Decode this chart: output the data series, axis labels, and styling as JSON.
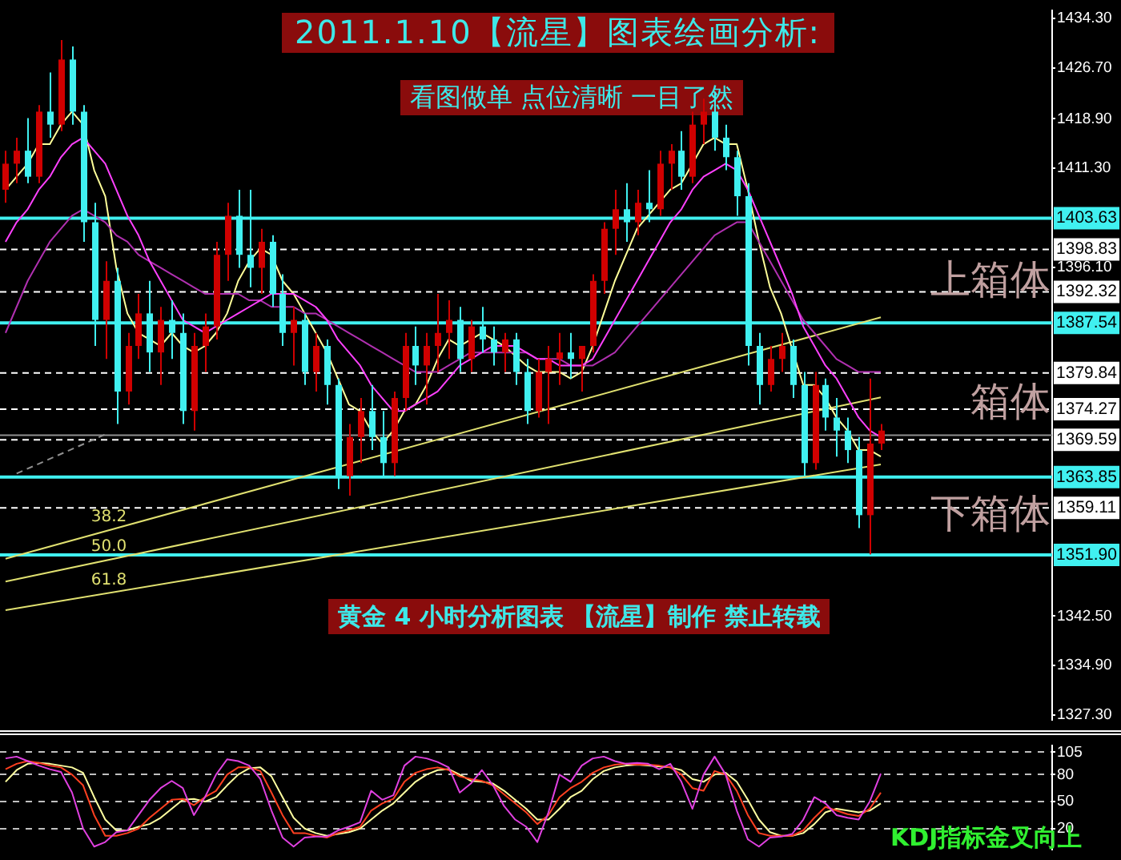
{
  "chart_data": [
    {
      "type": "candlestick",
      "title": "2011.1.10【流星】图表绘画分析:",
      "subtitle": "看图做单 点位清晰 一目了然",
      "categories": [
        null,
        null,
        null,
        null,
        null,
        null,
        null,
        null,
        null,
        null,
        null,
        null,
        null,
        null,
        null,
        null,
        null,
        null,
        null,
        null,
        null,
        null,
        null,
        null,
        null,
        null,
        null,
        null,
        null,
        null,
        null,
        null,
        null,
        null,
        null,
        null,
        null,
        null,
        null,
        null,
        null,
        null,
        null,
        null,
        null,
        null,
        null,
        null,
        null,
        null,
        null,
        null,
        null,
        null,
        null,
        null,
        null,
        null,
        null,
        null,
        null,
        null,
        null,
        null,
        null,
        null,
        null,
        null,
        null,
        null,
        null,
        null,
        null,
        null,
        null,
        null,
        null,
        null,
        null,
        null
      ],
      "ylim": [
        1326.6,
        1435.5
      ],
      "yticks": [
        {
          "value": 1327.3,
          "label": "1327.30"
        },
        {
          "value": 1334.9,
          "label": "1334.90"
        },
        {
          "value": 1342.5,
          "label": "1342.50"
        },
        {
          "value": 1396.1,
          "label": "1396.10"
        },
        {
          "value": 1411.3,
          "label": "1411.30"
        },
        {
          "value": 1418.9,
          "label": "1418.90"
        },
        {
          "value": 1426.7,
          "label": "1426.70"
        },
        {
          "value": 1434.3,
          "label": "1434.30"
        }
      ],
      "tick_labels": "y",
      "legend": false,
      "series": [
        {
          "type": "line",
          "color": "#ff40ff",
          "values": [
            1400,
            1403,
            1405,
            1408,
            1410,
            1413,
            1415,
            1416,
            1414,
            1412,
            1408,
            1404,
            1401,
            1397,
            1394,
            1391,
            1388,
            1387,
            1386,
            1387,
            1388,
            1389,
            1390,
            1391,
            1392,
            1392,
            1392,
            1391,
            1390,
            1388,
            1385,
            1383,
            1381,
            1378,
            1376,
            1374,
            1374,
            1375,
            1376,
            1377,
            1379,
            1381,
            1382,
            1383,
            1384,
            1384,
            1384,
            1383,
            1382,
            1382,
            1381,
            1381,
            1381,
            1382,
            1385,
            1388,
            1391,
            1394,
            1397,
            1400,
            1403,
            1405,
            1408,
            1410,
            1411,
            1412,
            1411,
            1408,
            1404,
            1400,
            1396,
            1392,
            1387,
            1384,
            1381,
            1379,
            1376,
            1373,
            1371,
            1370
          ]
        },
        {
          "type": "line",
          "color": "#b030b0",
          "values": [
            1386,
            1390,
            1394,
            1397,
            1400,
            1402,
            1404,
            1405,
            1404,
            1403,
            1401,
            1400,
            1398,
            1397,
            1396,
            1395,
            1394,
            1393,
            1392,
            1392,
            1392,
            1392,
            1391,
            1391,
            1390,
            1390,
            1390,
            1389,
            1389,
            1388,
            1387,
            1386,
            1385,
            1384,
            1383,
            1382,
            1381,
            1380,
            1380,
            1380,
            1381,
            1382,
            1383,
            1383,
            1383,
            1383,
            1383,
            1383,
            1382,
            1382,
            1382,
            1381,
            1381,
            1381,
            1382,
            1383,
            1385,
            1387,
            1389,
            1391,
            1393,
            1395,
            1397,
            1399,
            1401,
            1402,
            1403,
            1403,
            1400,
            1397,
            1394,
            1391,
            1388,
            1386,
            1384,
            1382,
            1381,
            1380,
            1380,
            1380
          ]
        },
        {
          "type": "line",
          "color": "#ffff99",
          "values": [
            1408,
            1410,
            1412,
            1415,
            1415,
            1418,
            1420,
            1418,
            1411,
            1407,
            1396,
            1389,
            1386,
            1385,
            1384,
            1386,
            1384,
            1383,
            1384,
            1386,
            1389,
            1394,
            1397,
            1399,
            1398,
            1394,
            1392,
            1389,
            1386,
            1383,
            1379,
            1375,
            1374,
            1371,
            1369,
            1371,
            1374,
            1375,
            1378,
            1382,
            1385,
            1384,
            1385,
            1386,
            1385,
            1384,
            null,
            1381,
            1380,
            1380,
            1380,
            1379,
            1380,
            1384,
            1389,
            1394,
            1398,
            1402,
            1404,
            1406,
            1408,
            1409,
            1412,
            1415,
            1416,
            1415,
            1415,
            1408,
            1400,
            1393,
            1389,
            null,
            1378,
            1378,
            1376,
            1373,
            1371,
            1368,
            1368,
            1367
          ]
        },
        {
          "type": "line",
          "name": "38.2",
          "color": "#e0e070",
          "values": [
            1351.3,
            null,
            null,
            null,
            null,
            null,
            null,
            null,
            null,
            null,
            null,
            null,
            null,
            null,
            null,
            null,
            null,
            null,
            null,
            null,
            null,
            null,
            null,
            null,
            null,
            null,
            null,
            null,
            null,
            null,
            null,
            null,
            null,
            null,
            null,
            null,
            null,
            null,
            null,
            null,
            null,
            null,
            null,
            null,
            null,
            null,
            null,
            null,
            null,
            null,
            null,
            null,
            null,
            null,
            null,
            null,
            null,
            null,
            null,
            null,
            null,
            null,
            null,
            null,
            null,
            null,
            null,
            null,
            null,
            null,
            null,
            null,
            null,
            null,
            null,
            null,
            null,
            null,
            null,
            1388.4
          ]
        },
        {
          "type": "line",
          "name": "50.0",
          "color": "#e0e070",
          "values": [
            1347.8,
            null,
            null,
            null,
            null,
            null,
            null,
            null,
            null,
            null,
            null,
            null,
            null,
            null,
            null,
            null,
            null,
            null,
            null,
            null,
            null,
            null,
            null,
            null,
            null,
            null,
            null,
            null,
            null,
            null,
            null,
            null,
            null,
            null,
            null,
            null,
            null,
            null,
            null,
            null,
            null,
            null,
            null,
            null,
            null,
            null,
            null,
            null,
            null,
            null,
            null,
            null,
            null,
            null,
            null,
            null,
            null,
            null,
            null,
            null,
            null,
            null,
            null,
            null,
            null,
            null,
            null,
            null,
            null,
            null,
            null,
            null,
            null,
            null,
            null,
            null,
            null,
            null,
            null,
            1376.1
          ]
        },
        {
          "type": "line",
          "name": "61.8",
          "color": "#e0e070",
          "values": [
            1343.4,
            null,
            null,
            null,
            null,
            null,
            null,
            null,
            null,
            null,
            null,
            null,
            null,
            null,
            null,
            null,
            null,
            null,
            null,
            null,
            null,
            null,
            null,
            null,
            null,
            null,
            null,
            null,
            null,
            null,
            null,
            null,
            null,
            null,
            null,
            null,
            null,
            null,
            null,
            null,
            null,
            null,
            null,
            null,
            null,
            null,
            null,
            null,
            null,
            null,
            null,
            null,
            null,
            null,
            null,
            null,
            null,
            null,
            null,
            null,
            null,
            null,
            null,
            null,
            null,
            null,
            null,
            null,
            null,
            null,
            null,
            null,
            null,
            null,
            null,
            null,
            null,
            null,
            null,
            1365.8
          ]
        },
        {
          "type": "line",
          "color": "#909090",
          "line_style": "dashed",
          "values": [
            null,
            1364.4,
            null,
            null,
            null,
            null,
            null,
            null,
            null,
            1370.4,
            null,
            null,
            null,
            null,
            null,
            null,
            null,
            null,
            null,
            null,
            null,
            null,
            null,
            null,
            null,
            null,
            null,
            null,
            null,
            null,
            null,
            null,
            null,
            null,
            null,
            null,
            null,
            null,
            null,
            null,
            null,
            null,
            null,
            null,
            null,
            null,
            null,
            null,
            null,
            null,
            null,
            null,
            null,
            null,
            null,
            null,
            null,
            null,
            null,
            null,
            null,
            null,
            null,
            null,
            null,
            null,
            null,
            null,
            null,
            null,
            null,
            null,
            null,
            null,
            null,
            null,
            null,
            null,
            null,
            null
          ]
        },
        {
          "type": "candlestick",
          "ohlc": [
            [
              1408,
              1414,
              1406,
              1412
            ],
            [
              1412,
              1416,
              1409,
              1414
            ],
            [
              1414,
              1419,
              1409,
              1410
            ],
            [
              1410,
              1421,
              1409,
              1420
            ],
            [
              1420,
              1426,
              1416,
              1418
            ],
            [
              1418,
              1431,
              1417,
              1428
            ],
            [
              1428,
              1430,
              1418,
              1420
            ],
            [
              1420,
              1421,
              1400,
              1403
            ],
            [
              1403,
              1406,
              1384,
              1388
            ],
            [
              1388,
              1397,
              1382,
              1394
            ],
            [
              1394,
              1396,
              1372,
              1377
            ],
            [
              1377,
              1386,
              1375,
              1384
            ],
            [
              1384,
              1392,
              1382,
              1389
            ],
            [
              1389,
              1394,
              1380,
              1383
            ],
            [
              1383,
              1390,
              1378,
              1388
            ],
            [
              1388,
              1391,
              1382,
              1386
            ],
            [
              1386,
              1389,
              1372,
              1374
            ],
            [
              1374,
              1386,
              1371,
              1384
            ],
            [
              1384,
              1389,
              1380,
              1387
            ],
            [
              1387,
              1400,
              1385,
              1398
            ],
            [
              1398,
              1406,
              1394,
              1404
            ],
            [
              1404,
              1408,
              1396,
              1398
            ],
            [
              1398,
              1408,
              1393,
              1396
            ],
            [
              1396,
              1402,
              1392,
              1400
            ],
            [
              1400,
              1401,
              1390,
              1392
            ],
            [
              1392,
              1395,
              1384,
              1386
            ],
            [
              1386,
              1390,
              1381,
              1388
            ],
            [
              1388,
              1389,
              1378,
              1380
            ],
            [
              1380,
              1386,
              1377,
              1384
            ],
            [
              1384,
              1385,
              1375,
              1378
            ],
            [
              1378,
              1379,
              1362,
              1364
            ],
            [
              1364,
              1372,
              1361,
              1370
            ],
            [
              1370,
              1376,
              1366,
              1374
            ],
            [
              1374,
              1378,
              1368,
              1370
            ],
            [
              1370,
              1374,
              1364,
              1366
            ],
            [
              1366,
              1377,
              1364,
              1376
            ],
            [
              1376,
              1386,
              1374,
              1384
            ],
            [
              1384,
              1387,
              1378,
              1381
            ],
            [
              1381,
              1386,
              1375,
              1384
            ],
            [
              1384,
              1392,
              1380,
              1386
            ],
            [
              1386,
              1391,
              1382,
              1388
            ],
            [
              1388,
              1390,
              1380,
              1382
            ],
            [
              1382,
              1388,
              1380,
              1387
            ],
            [
              1387,
              1390,
              1383,
              1385
            ],
            [
              1385,
              1387,
              1381,
              1383
            ],
            [
              1383,
              1386,
              1380,
              1385
            ],
            [
              1385,
              1386,
              1378,
              1380
            ],
            [
              1380,
              1382,
              1372,
              1374
            ],
            [
              1374,
              1382,
              1373,
              1380
            ],
            [
              1380,
              1384,
              1372,
              1382
            ],
            [
              1382,
              1386,
              1378,
              1383
            ],
            [
              1383,
              1386,
              1379,
              1382
            ],
            [
              1382,
              1384,
              1377,
              1384
            ],
            [
              1384,
              1395,
              1383,
              1394
            ],
            [
              1394,
              1403,
              1392,
              1402
            ],
            [
              1402,
              1408,
              1398,
              1405
            ],
            [
              1405,
              1409,
              1400,
              1403
            ],
            [
              1403,
              1408,
              1401,
              1406
            ],
            [
              1406,
              1411,
              1403,
              1405
            ],
            [
              1405,
              1414,
              1404,
              1412
            ],
            [
              1412,
              1415,
              1408,
              1414
            ],
            [
              1414,
              1417,
              1408,
              1410
            ],
            [
              1410,
              1420,
              1409,
              1418
            ],
            [
              1418,
              1422,
              1415,
              1420
            ],
            [
              1420,
              1423,
              1414,
              1416
            ],
            [
              1416,
              1418,
              1411,
              1413
            ],
            [
              1413,
              1414,
              1404,
              1407
            ],
            [
              1407,
              1409,
              1381,
              1384
            ],
            [
              1384,
              1386,
              1375,
              1378
            ],
            [
              1378,
              1384,
              1377,
              1382
            ],
            [
              1382,
              1386,
              1380,
              1384
            ],
            [
              1384,
              1385,
              1376,
              1378
            ],
            [
              1378,
              1380,
              1364,
              1366
            ],
            [
              1366,
              1380,
              1365,
              1378
            ],
            [
              1378,
              1379,
              1371,
              1373
            ],
            [
              1373,
              1376,
              1367,
              1371
            ],
            [
              1371,
              1373,
              1366,
              1368
            ],
            [
              1368,
              1370,
              1356,
              1358
            ],
            [
              1358,
              1379,
              1352,
              1369
            ],
            [
              1369,
              1372,
              1368,
              1371
            ]
          ],
          "colors": [
            "#d00000",
            "#d00000",
            "#40f0f0",
            "#d00000",
            "#40f0f0",
            "#d00000",
            "#40f0f0",
            "#40f0f0",
            "#40f0f0",
            "#d00000",
            "#40f0f0",
            "#d00000",
            "#d00000",
            "#40f0f0",
            "#d00000",
            "#40f0f0",
            "#40f0f0",
            "#d00000",
            "#d00000",
            "#d00000",
            "#d00000",
            "#40f0f0",
            "#40f0f0",
            "#d00000",
            "#40f0f0",
            "#40f0f0",
            "#d00000",
            "#40f0f0",
            "#d00000",
            "#40f0f0",
            "#40f0f0",
            "#d00000",
            "#d00000",
            "#40f0f0",
            "#40f0f0",
            "#d00000",
            "#d00000",
            "#40f0f0",
            "#d00000",
            "#d00000",
            "#d00000",
            "#40f0f0",
            "#d00000",
            "#40f0f0",
            "#40f0f0",
            "#d00000",
            "#40f0f0",
            "#40f0f0",
            "#d00000",
            "#d00000",
            "#d00000",
            "#40f0f0",
            "#d00000",
            "#d00000",
            "#d00000",
            "#d00000",
            "#40f0f0",
            "#d00000",
            "#40f0f0",
            "#d00000",
            "#d00000",
            "#40f0f0",
            "#d00000",
            "#d00000",
            "#40f0f0",
            "#40f0f0",
            "#40f0f0",
            "#40f0f0",
            "#40f0f0",
            "#d00000",
            "#d00000",
            "#40f0f0",
            "#40f0f0",
            "#d00000",
            "#40f0f0",
            "#40f0f0",
            "#40f0f0",
            "#40f0f0",
            "#d00000",
            "#d00000"
          ]
        }
      ],
      "ref_lines": [
        {
          "axis": "y",
          "value": 1403.63,
          "label": "1403.63",
          "color": "#40f0f0"
        },
        {
          "axis": "y",
          "value": 1398.83,
          "label": "1398.83",
          "color": "#ffffff",
          "line_style": "dashed"
        },
        {
          "axis": "y",
          "value": 1392.32,
          "label": "1392.32",
          "color": "#ffffff",
          "line_style": "dashed"
        },
        {
          "axis": "y",
          "value": 1387.54,
          "label": "1387.54",
          "color": "#40f0f0"
        },
        {
          "axis": "y",
          "value": 1379.84,
          "label": "1379.84",
          "color": "#ffffff",
          "line_style": "dashed"
        },
        {
          "axis": "y",
          "value": 1374.27,
          "label": "1374.27",
          "color": "#ffffff",
          "line_style": "dashed"
        },
        {
          "axis": "y",
          "value": 1370.3,
          "color": "#909090"
        },
        {
          "axis": "y",
          "value": 1369.59,
          "label": "1369.59",
          "color": "#ffffff",
          "line_style": "dashed"
        },
        {
          "axis": "y",
          "value": 1363.85,
          "label": "1363.85",
          "color": "#40f0f0"
        },
        {
          "axis": "y",
          "value": 1359.11,
          "label": "1359.11",
          "color": "#ffffff",
          "line_style": "dashed"
        },
        {
          "axis": "y",
          "value": 1351.9,
          "label": "1351.90",
          "color": "#40f0f0"
        }
      ],
      "annotations": [
        "黄金 4 小时分析图表 【流星】制作 禁止转载",
        "上箱体",
        "箱体",
        "下箱体"
      ]
    },
    {
      "type": "line",
      "categories": [
        null,
        null,
        null,
        null,
        null,
        null,
        null,
        null,
        null,
        null,
        null,
        null,
        null,
        null,
        null,
        null,
        null,
        null,
        null,
        null,
        null,
        null,
        null,
        null,
        null,
        null,
        null,
        null,
        null,
        null,
        null,
        null,
        null,
        null,
        null,
        null,
        null,
        null,
        null,
        null,
        null,
        null,
        null,
        null,
        null,
        null,
        null,
        null,
        null,
        null,
        null,
        null,
        null,
        null,
        null,
        null,
        null,
        null,
        null,
        null,
        null,
        null,
        null,
        null,
        null,
        null,
        null,
        null,
        null,
        null,
        null,
        null,
        null,
        null,
        null,
        null,
        null,
        null,
        null,
        null
      ],
      "ylim": [
        -3,
        112
      ],
      "yticks": [
        20,
        50,
        80,
        105
      ],
      "grid": "y",
      "tick_labels": "y",
      "legend": false,
      "series": [
        {
          "type": "line",
          "color": "#e040e0",
          "values": [
            98,
            100,
            95,
            90,
            86,
            83,
            60,
            20,
            0,
            5,
            16,
            18,
            35,
            52,
            65,
            73,
            65,
            35,
            55,
            80,
            97,
            95,
            90,
            75,
            40,
            10,
            0,
            10,
            11,
            11,
            18,
            22,
            27,
            62,
            52,
            57,
            90,
            100,
            98,
            94,
            88,
            60,
            70,
            85,
            68,
            45,
            30,
            22,
            5,
            38,
            80,
            72,
            90,
            98,
            100,
            95,
            92,
            93,
            92,
            86,
            92,
            72,
            42,
            80,
            100,
            80,
            40,
            8,
            0,
            10,
            11,
            14,
            30,
            55,
            48,
            35,
            32,
            30,
            50,
            81
          ]
        },
        {
          "type": "line",
          "color": "#ff4020",
          "values": [
            86,
            92,
            95,
            93,
            90,
            88,
            80,
            68,
            35,
            12,
            12,
            15,
            20,
            32,
            42,
            52,
            53,
            46,
            55,
            62,
            80,
            88,
            88,
            84,
            60,
            35,
            15,
            15,
            12,
            10,
            15,
            18,
            22,
            40,
            48,
            53,
            72,
            82,
            86,
            88,
            85,
            78,
            75,
            73,
            68,
            58,
            48,
            38,
            25,
            35,
            55,
            65,
            72,
            82,
            88,
            91,
            92,
            91,
            91,
            90,
            88,
            80,
            65,
            62,
            84,
            80,
            62,
            35,
            15,
            12,
            12,
            12,
            18,
            32,
            44,
            40,
            36,
            34,
            42,
            60
          ]
        },
        {
          "type": "line",
          "color": "#ffffa0",
          "values": [
            72,
            85,
            92,
            93,
            92,
            90,
            88,
            82,
            55,
            30,
            18,
            18,
            22,
            25,
            32,
            42,
            52,
            53,
            50,
            55,
            68,
            80,
            87,
            88,
            78,
            55,
            32,
            20,
            15,
            12,
            14,
            16,
            20,
            30,
            40,
            48,
            60,
            72,
            80,
            85,
            86,
            80,
            73,
            72,
            70,
            62,
            52,
            42,
            30,
            30,
            42,
            55,
            62,
            75,
            84,
            88,
            90,
            91,
            90,
            null,
            88,
            85,
            75,
            72,
            80,
            82,
            72,
            52,
            30,
            16,
            12,
            12,
            15,
            25,
            38,
            42,
            40,
            38,
            40,
            48
          ]
        }
      ],
      "annotations": [
        "KDJ指标金叉向上"
      ]
    }
  ]
}
